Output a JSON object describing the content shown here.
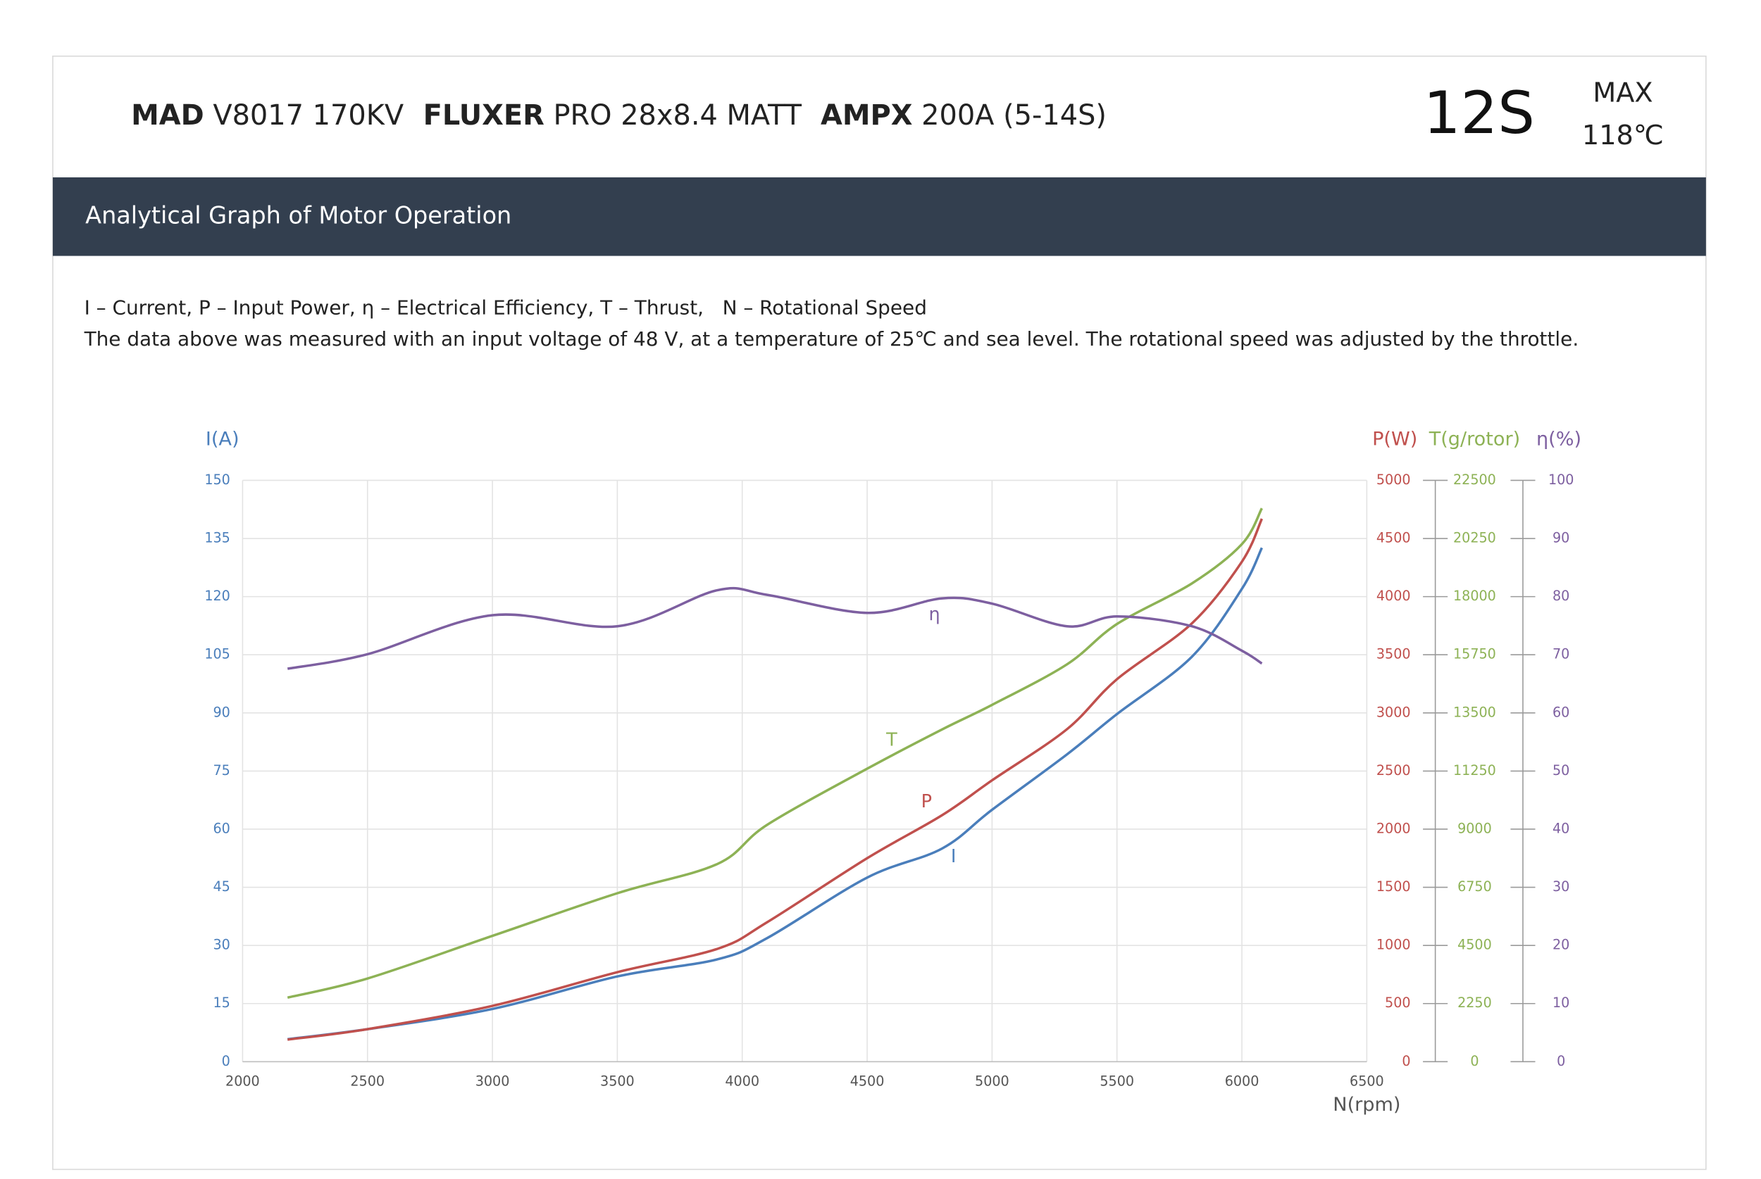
{
  "header": {
    "items": [
      {
        "brand": "MAD",
        "model": " V8017 170KV"
      },
      {
        "brand": "FLUXER",
        "model": " PRO 28x8.4 MATT"
      },
      {
        "brand": "AMPX",
        "model": " 200A (5-14S)"
      }
    ],
    "cells": "12S",
    "max_label": "MAX",
    "max_temp": "118℃"
  },
  "banner": {
    "title": "Analytical Graph of Motor Operation"
  },
  "notes": [
    "I – Current, P – Input Power, η – Electrical Efficiency, T – Thrust,   N – Rotational Speed",
    "The data above was measured with an input voltage of 48 V, at a temperature of 25℃ and sea level. The rotational speed was adjusted by the throttle."
  ],
  "chart_data": {
    "type": "line",
    "x": [
      2180,
      2500,
      3000,
      3500,
      3900,
      4100,
      4500,
      4800,
      5000,
      5300,
      5500,
      5800,
      6000,
      6080
    ],
    "xlim": [
      2000,
      6500
    ],
    "xticks": [
      2000,
      2500,
      3000,
      3500,
      4000,
      4500,
      5000,
      5500,
      6000,
      6500
    ],
    "xlabel": "N(rpm)",
    "ylim": [
      0,
      150
    ],
    "yticks": [
      0,
      15,
      30,
      45,
      60,
      75,
      90,
      105,
      120,
      135,
      150
    ],
    "ylabel": "I(A)",
    "y2lim": [
      0,
      5000
    ],
    "y2ticks": [
      0,
      500,
      1000,
      1500,
      2000,
      2500,
      3000,
      3500,
      4000,
      4500,
      5000
    ],
    "y2label": "P(W)",
    "y3lim": [
      0,
      22500
    ],
    "y3ticks": [
      0,
      2250,
      4500,
      6750,
      9000,
      11250,
      13500,
      15750,
      18000,
      20250,
      22500
    ],
    "y3label": "T(g/rotor)",
    "y4lim": [
      0,
      100
    ],
    "y4ticks": [
      0,
      10,
      20,
      30,
      40,
      50,
      60,
      70,
      80,
      90,
      100
    ],
    "y4label": "η(%)",
    "grid": true,
    "series": [
      {
        "name": "I",
        "color": "#4a7ebb",
        "axis": "y",
        "values": [
          5.8,
          8.4,
          13.6,
          22,
          26.4,
          31.9,
          47.5,
          55,
          65,
          79.3,
          89.7,
          104.5,
          122,
          132.6
        ]
      },
      {
        "name": "P",
        "color": "#c0504d",
        "axis": "y2",
        "values": [
          190,
          280,
          480,
          770,
          970,
          1200,
          1750,
          2120,
          2420,
          2860,
          3290,
          3770,
          4300,
          4670
        ]
      },
      {
        "name": "T",
        "color": "#8db255",
        "axis": "y3",
        "values": [
          2480,
          3220,
          4870,
          6520,
          7650,
          9170,
          11340,
          12860,
          13810,
          15380,
          16940,
          18510,
          20030,
          21420
        ]
      },
      {
        "name": "η",
        "color": "#7d5fa0",
        "axis": "y4",
        "values": [
          67.6,
          70.1,
          76.8,
          74.9,
          81.1,
          80.3,
          77.2,
          79.7,
          78.8,
          74.9,
          76.6,
          74.9,
          70.7,
          68.5
        ]
      }
    ]
  }
}
